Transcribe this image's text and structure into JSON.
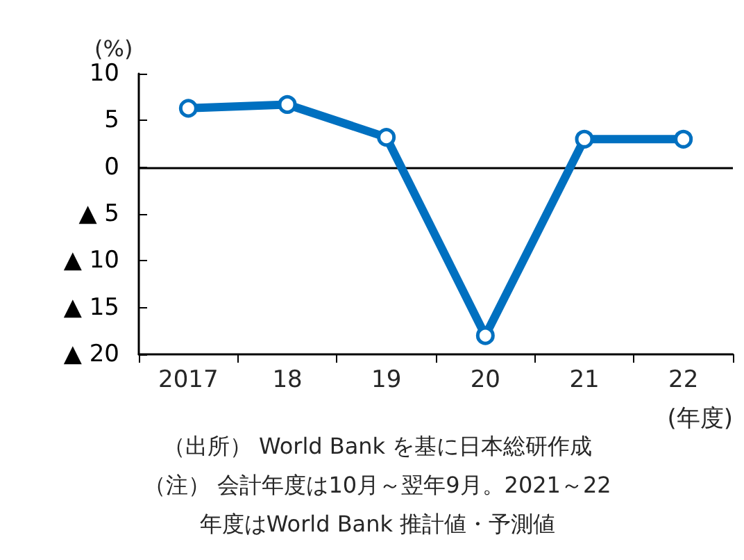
{
  "chart_data": {
    "type": "line",
    "ylabel": "(%)",
    "xlabel": "(年度)",
    "categories": [
      "2017",
      "18",
      "19",
      "20",
      "21",
      "22"
    ],
    "series": [
      {
        "color": "#0070c0",
        "values": [
          6.3,
          6.7,
          3.2,
          -18,
          3.0,
          3.0
        ]
      }
    ],
    "ylim": [
      -20,
      10
    ],
    "yticks": [
      10,
      5,
      0,
      {
        "value": -5,
        "label": "▲ 5"
      },
      {
        "value": -10,
        "label": "▲ 10"
      },
      {
        "value": -15,
        "label": "▲ 15"
      },
      {
        "value": -20,
        "label": "▲ 20"
      }
    ],
    "ref_lines": [
      {
        "axis": "y",
        "value": 0,
        "color": "#000000"
      }
    ],
    "grid": false,
    "marker": "circle",
    "line_style": "solid",
    "annotations": [
      "（出所） World Bank を基に日本総研作成",
      "（注） 会計年度は10月～翌年9月。2021～22",
      "年度はWorld Bank 推計値・予測値"
    ]
  }
}
